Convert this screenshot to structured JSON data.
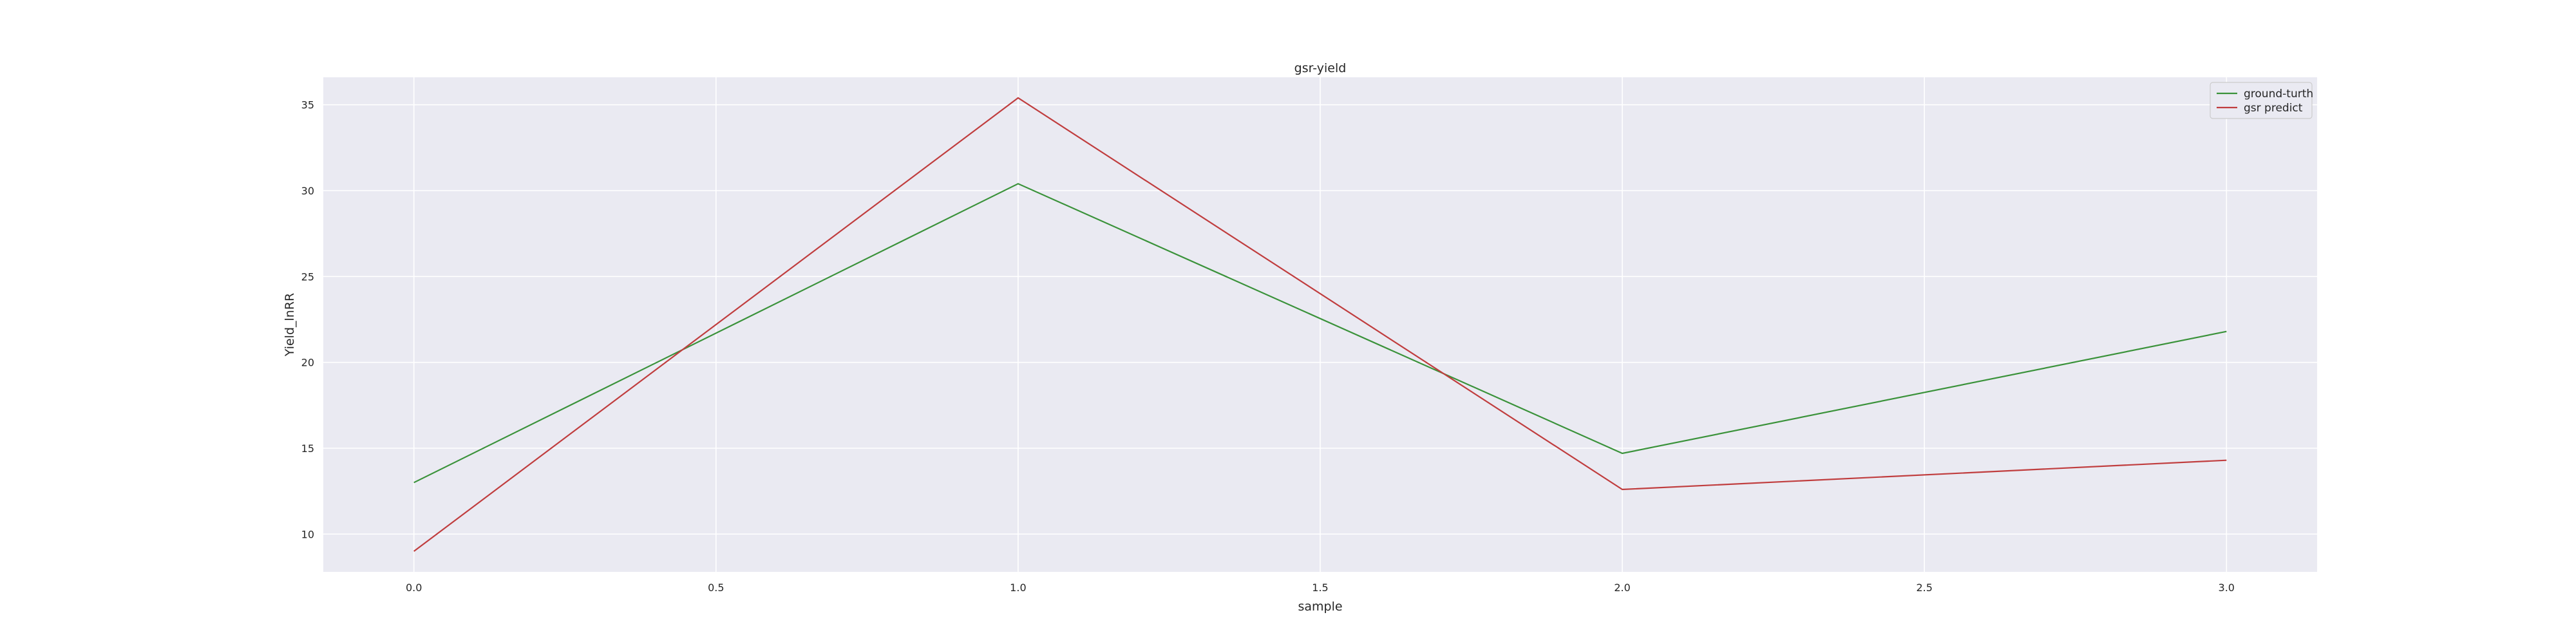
{
  "chart_data": {
    "type": "line",
    "title": "gsr-yield",
    "xlabel": "sample",
    "ylabel": "Yield_lnRR",
    "x": [
      0,
      1,
      2,
      3
    ],
    "xlim": [
      -0.15,
      3.15
    ],
    "ylim": [
      7.8,
      36.6
    ],
    "xticks": [
      0.0,
      0.5,
      1.0,
      1.5,
      2.0,
      2.5,
      3.0
    ],
    "xtick_labels": [
      "0.0",
      "0.5",
      "1.0",
      "1.5",
      "2.0",
      "2.5",
      "3.0"
    ],
    "yticks": [
      10,
      15,
      20,
      25,
      30,
      35
    ],
    "ytick_labels": [
      "10",
      "15",
      "20",
      "25",
      "30",
      "35"
    ],
    "grid": true,
    "legend_position": "top-right",
    "background_color": "#eaeaf2",
    "grid_color": "#ffffff",
    "series": [
      {
        "name": "ground-turth",
        "color": "#3a923a",
        "values": [
          13.0,
          30.4,
          14.7,
          21.8
        ]
      },
      {
        "name": "gsr predict",
        "color": "#c03d3e",
        "values": [
          9.0,
          35.4,
          12.6,
          14.3
        ]
      }
    ]
  }
}
